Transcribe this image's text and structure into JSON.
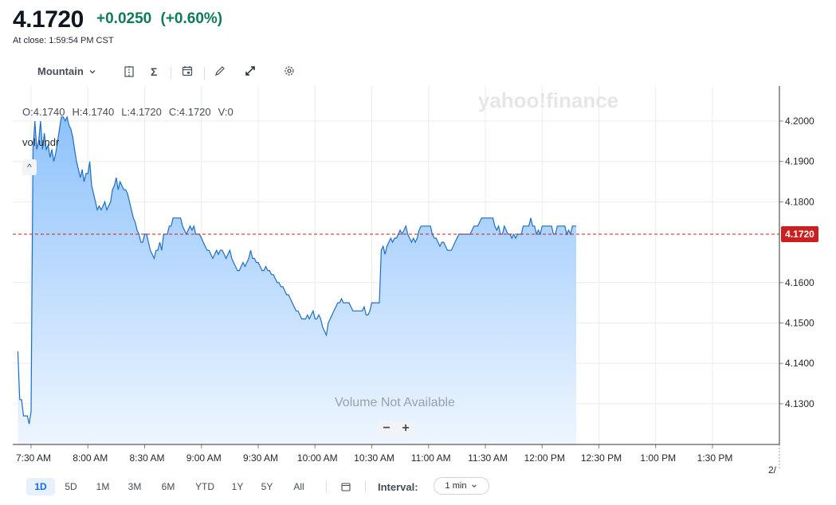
{
  "header": {
    "price": "4.1720",
    "change": "+0.0250",
    "change_pct": "(+0.60%)",
    "close_time": "At close: 1:59:54 PM CST",
    "change_color": "#0f7a5a"
  },
  "toolbar": {
    "chart_type": "Mountain",
    "icons": [
      "compare-icon",
      "indicators-icon",
      "events-icon",
      "draw-icon",
      "fullscreen-icon",
      "settings-icon"
    ]
  },
  "watermark": "yahoo!finance",
  "ohlc": {
    "o": "O:4.1740",
    "h": "H:4.1740",
    "l": "L:4.1720",
    "c": "C:4.1720",
    "v": "V:0"
  },
  "volume_label": "vol undr",
  "collapse_glyph": "^",
  "no_volume_text": "Volume Not Available",
  "zoom": {
    "minus": "−",
    "plus": "+"
  },
  "footer": {
    "ranges": [
      "1D",
      "5D",
      "1M",
      "3M",
      "6M",
      "YTD",
      "1Y",
      "5Y",
      "All"
    ],
    "active_range": "1D",
    "interval_label": "Interval:",
    "interval_value": "1 min",
    "truncated_date": "2/"
  },
  "chart_data": {
    "type": "area",
    "title": "",
    "xlabel": "",
    "ylabel": "",
    "x_ticks": [
      "7:30 AM",
      "8:00 AM",
      "8:30 AM",
      "9:00 AM",
      "9:30 AM",
      "10:00 AM",
      "10:30 AM",
      "11:00 AM",
      "11:30 AM",
      "12:00 PM",
      "12:30 PM",
      "1:00 PM",
      "1:30 PM"
    ],
    "x_tick_minutes": [
      450,
      480,
      510,
      540,
      570,
      600,
      630,
      660,
      690,
      720,
      750,
      780,
      810
    ],
    "y_ticks": [
      "4.2000",
      "4.1900",
      "4.1800",
      "4.1600",
      "4.1500",
      "4.1400",
      "4.1300"
    ],
    "y_tick_values": [
      4.2,
      4.19,
      4.18,
      4.16,
      4.15,
      4.14,
      4.13
    ],
    "ylim": [
      4.1215,
      4.2085
    ],
    "xlim": [
      450,
      850
    ],
    "last_price": 4.172,
    "last_price_label": "4.1720",
    "line_color": "#1e6fc4",
    "fill_top_color": "#8ec2fb",
    "fill_bottom_color": "#eef6ff",
    "last_price_color": "#cc1f1f",
    "grid": true,
    "series": [
      {
        "values": [
          [
            443,
            4.143
          ],
          [
            444,
            4.131
          ],
          [
            445,
            4.131
          ],
          [
            446,
            4.127
          ],
          [
            448,
            4.127
          ],
          [
            449,
            4.125
          ],
          [
            450,
            4.128
          ],
          [
            451,
            4.193
          ],
          [
            452,
            4.2
          ],
          [
            453,
            4.193
          ],
          [
            454,
            4.195
          ],
          [
            455,
            4.2
          ],
          [
            456,
            4.193
          ],
          [
            457,
            4.197
          ],
          [
            458,
            4.193
          ],
          [
            459,
            4.194
          ],
          [
            460,
            4.191
          ],
          [
            461,
            4.193
          ],
          [
            462,
            4.19
          ],
          [
            463,
            4.192
          ],
          [
            464,
            4.195
          ],
          [
            465,
            4.198
          ],
          [
            466,
            4.201
          ],
          [
            467,
            4.201
          ],
          [
            468,
            4.2
          ],
          [
            469,
            4.201
          ],
          [
            470,
            4.199
          ],
          [
            471,
            4.198
          ],
          [
            472,
            4.196
          ],
          [
            473,
            4.193
          ],
          [
            474,
            4.19
          ],
          [
            475,
            4.188
          ],
          [
            476,
            4.186
          ],
          [
            477,
            4.188
          ],
          [
            478,
            4.185
          ],
          [
            479,
            4.187
          ],
          [
            480,
            4.187
          ],
          [
            481,
            4.19
          ],
          [
            482,
            4.184
          ],
          [
            483,
            4.182
          ],
          [
            484,
            4.18
          ],
          [
            485,
            4.178
          ],
          [
            486,
            4.179
          ],
          [
            487,
            4.178
          ],
          [
            488,
            4.179
          ],
          [
            489,
            4.18
          ],
          [
            490,
            4.178
          ],
          [
            491,
            4.179
          ],
          [
            492,
            4.18
          ],
          [
            493,
            4.183
          ],
          [
            494,
            4.184
          ],
          [
            495,
            4.186
          ],
          [
            496,
            4.183
          ],
          [
            497,
            4.185
          ],
          [
            498,
            4.184
          ],
          [
            499,
            4.183
          ],
          [
            500,
            4.183
          ],
          [
            501,
            4.182
          ],
          [
            502,
            4.18
          ],
          [
            503,
            4.178
          ],
          [
            504,
            4.176
          ],
          [
            505,
            4.175
          ],
          [
            506,
            4.173
          ],
          [
            507,
            4.172
          ],
          [
            508,
            4.17
          ],
          [
            509,
            4.17
          ],
          [
            510,
            4.172
          ],
          [
            511,
            4.172
          ],
          [
            512,
            4.17
          ],
          [
            513,
            4.168
          ],
          [
            514,
            4.167
          ],
          [
            515,
            4.166
          ],
          [
            516,
            4.168
          ],
          [
            517,
            4.168
          ],
          [
            518,
            4.17
          ],
          [
            519,
            4.168
          ],
          [
            520,
            4.172
          ],
          [
            521,
            4.172
          ],
          [
            522,
            4.172
          ],
          [
            523,
            4.174
          ],
          [
            524,
            4.174
          ],
          [
            525,
            4.176
          ],
          [
            526,
            4.176
          ],
          [
            527,
            4.176
          ],
          [
            528,
            4.176
          ],
          [
            529,
            4.176
          ],
          [
            530,
            4.174
          ],
          [
            531,
            4.173
          ],
          [
            532,
            4.172
          ],
          [
            533,
            4.173
          ],
          [
            534,
            4.174
          ],
          [
            535,
            4.173
          ],
          [
            536,
            4.174
          ],
          [
            537,
            4.172
          ],
          [
            538,
            4.172
          ],
          [
            539,
            4.172
          ],
          [
            540,
            4.171
          ],
          [
            541,
            4.17
          ],
          [
            542,
            4.169
          ],
          [
            543,
            4.168
          ],
          [
            544,
            4.168
          ],
          [
            545,
            4.167
          ],
          [
            546,
            4.166
          ],
          [
            547,
            4.167
          ],
          [
            548,
            4.168
          ],
          [
            549,
            4.167
          ],
          [
            550,
            4.168
          ],
          [
            551,
            4.168
          ],
          [
            552,
            4.167
          ],
          [
            553,
            4.166
          ],
          [
            554,
            4.167
          ],
          [
            555,
            4.168
          ],
          [
            556,
            4.166
          ],
          [
            557,
            4.165
          ],
          [
            558,
            4.164
          ],
          [
            559,
            4.163
          ],
          [
            560,
            4.163
          ],
          [
            561,
            4.164
          ],
          [
            562,
            4.165
          ],
          [
            563,
            4.164
          ],
          [
            564,
            4.165
          ],
          [
            565,
            4.166
          ],
          [
            566,
            4.168
          ],
          [
            567,
            4.166
          ],
          [
            568,
            4.166
          ],
          [
            569,
            4.165
          ],
          [
            570,
            4.165
          ],
          [
            571,
            4.164
          ],
          [
            572,
            4.163
          ],
          [
            573,
            4.163
          ],
          [
            574,
            4.164
          ],
          [
            575,
            4.163
          ],
          [
            576,
            4.163
          ],
          [
            577,
            4.162
          ],
          [
            578,
            4.162
          ],
          [
            579,
            4.161
          ],
          [
            580,
            4.16
          ],
          [
            581,
            4.16
          ],
          [
            582,
            4.159
          ],
          [
            583,
            4.159
          ],
          [
            584,
            4.158
          ],
          [
            585,
            4.157
          ],
          [
            586,
            4.157
          ],
          [
            587,
            4.156
          ],
          [
            588,
            4.155
          ],
          [
            589,
            4.154
          ],
          [
            590,
            4.153
          ],
          [
            591,
            4.153
          ],
          [
            592,
            4.152
          ],
          [
            593,
            4.151
          ],
          [
            594,
            4.151
          ],
          [
            595,
            4.151
          ],
          [
            596,
            4.152
          ],
          [
            597,
            4.151
          ],
          [
            598,
            4.152
          ],
          [
            599,
            4.153
          ],
          [
            600,
            4.151
          ],
          [
            601,
            4.151
          ],
          [
            602,
            4.152
          ],
          [
            603,
            4.151
          ],
          [
            604,
            4.149
          ],
          [
            605,
            4.148
          ],
          [
            606,
            4.147
          ],
          [
            607,
            4.15
          ],
          [
            608,
            4.151
          ],
          [
            609,
            4.152
          ],
          [
            610,
            4.153
          ],
          [
            611,
            4.154
          ],
          [
            612,
            4.155
          ],
          [
            613,
            4.155
          ],
          [
            614,
            4.156
          ],
          [
            615,
            4.155
          ],
          [
            616,
            4.155
          ],
          [
            617,
            4.155
          ],
          [
            618,
            4.155
          ],
          [
            619,
            4.154
          ],
          [
            620,
            4.153
          ],
          [
            621,
            4.153
          ],
          [
            622,
            4.153
          ],
          [
            623,
            4.153
          ],
          [
            624,
            4.153
          ],
          [
            625,
            4.153
          ],
          [
            626,
            4.154
          ],
          [
            627,
            4.152
          ],
          [
            628,
            4.152
          ],
          [
            629,
            4.153
          ],
          [
            630,
            4.155
          ],
          [
            631,
            4.155
          ],
          [
            632,
            4.155
          ],
          [
            633,
            4.155
          ],
          [
            634,
            4.155
          ],
          [
            635,
            4.168
          ],
          [
            636,
            4.169
          ],
          [
            637,
            4.167
          ],
          [
            638,
            4.169
          ],
          [
            639,
            4.17
          ],
          [
            640,
            4.171
          ],
          [
            641,
            4.17
          ],
          [
            642,
            4.171
          ],
          [
            643,
            4.171
          ],
          [
            644,
            4.172
          ],
          [
            645,
            4.173
          ],
          [
            646,
            4.172
          ],
          [
            647,
            4.173
          ],
          [
            648,
            4.174
          ],
          [
            649,
            4.172
          ],
          [
            650,
            4.171
          ],
          [
            651,
            4.17
          ],
          [
            652,
            4.171
          ],
          [
            653,
            4.17
          ],
          [
            654,
            4.171
          ],
          [
            655,
            4.173
          ],
          [
            656,
            4.174
          ],
          [
            657,
            4.174
          ],
          [
            658,
            4.174
          ],
          [
            659,
            4.174
          ],
          [
            660,
            4.174
          ],
          [
            661,
            4.174
          ],
          [
            662,
            4.172
          ],
          [
            663,
            4.171
          ],
          [
            664,
            4.171
          ],
          [
            665,
            4.17
          ],
          [
            666,
            4.169
          ],
          [
            667,
            4.17
          ],
          [
            668,
            4.17
          ],
          [
            669,
            4.169
          ],
          [
            670,
            4.168
          ],
          [
            671,
            4.168
          ],
          [
            672,
            4.168
          ],
          [
            673,
            4.169
          ],
          [
            674,
            4.17
          ],
          [
            675,
            4.171
          ],
          [
            676,
            4.172
          ],
          [
            677,
            4.172
          ],
          [
            678,
            4.172
          ],
          [
            679,
            4.172
          ],
          [
            680,
            4.172
          ],
          [
            681,
            4.172
          ],
          [
            682,
            4.172
          ],
          [
            683,
            4.173
          ],
          [
            684,
            4.174
          ],
          [
            685,
            4.174
          ],
          [
            686,
            4.174
          ],
          [
            687,
            4.175
          ],
          [
            688,
            4.176
          ],
          [
            689,
            4.176
          ],
          [
            690,
            4.176
          ],
          [
            691,
            4.176
          ],
          [
            692,
            4.176
          ],
          [
            693,
            4.176
          ],
          [
            694,
            4.176
          ],
          [
            695,
            4.174
          ],
          [
            696,
            4.173
          ],
          [
            697,
            4.174
          ],
          [
            698,
            4.172
          ],
          [
            699,
            4.172
          ],
          [
            700,
            4.174
          ],
          [
            701,
            4.173
          ],
          [
            702,
            4.172
          ],
          [
            703,
            4.172
          ],
          [
            704,
            4.171
          ],
          [
            705,
            4.172
          ],
          [
            706,
            4.171
          ],
          [
            707,
            4.172
          ],
          [
            708,
            4.172
          ],
          [
            709,
            4.172
          ],
          [
            710,
            4.174
          ],
          [
            711,
            4.174
          ],
          [
            712,
            4.174
          ],
          [
            713,
            4.174
          ],
          [
            714,
            4.176
          ],
          [
            715,
            4.174
          ],
          [
            716,
            4.174
          ],
          [
            717,
            4.172
          ],
          [
            718,
            4.173
          ],
          [
            719,
            4.172
          ],
          [
            720,
            4.174
          ],
          [
            721,
            4.174
          ],
          [
            722,
            4.174
          ],
          [
            723,
            4.174
          ],
          [
            724,
            4.174
          ],
          [
            725,
            4.174
          ],
          [
            726,
            4.172
          ],
          [
            727,
            4.172
          ],
          [
            728,
            4.174
          ],
          [
            729,
            4.174
          ],
          [
            730,
            4.174
          ],
          [
            731,
            4.174
          ],
          [
            732,
            4.174
          ],
          [
            733,
            4.172
          ],
          [
            734,
            4.173
          ],
          [
            735,
            4.172
          ],
          [
            736,
            4.174
          ],
          [
            737,
            4.174
          ],
          [
            738,
            4.174
          ]
        ]
      }
    ]
  }
}
